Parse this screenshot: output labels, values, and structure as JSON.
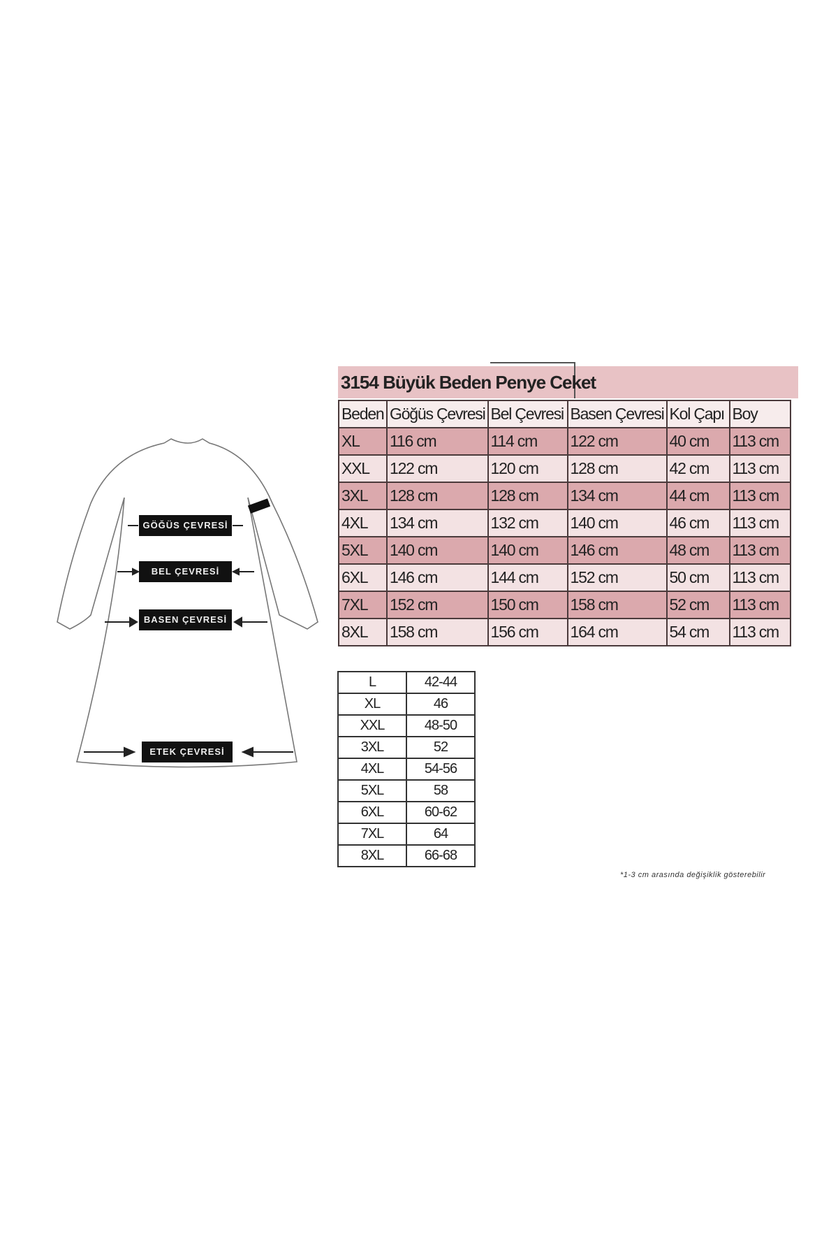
{
  "title": "3154 Büyük Beden Penye Ceket",
  "size_table": {
    "headers": [
      "Beden",
      "Göğüs Çevresi",
      "Bel Çevresi",
      "Basen Çevresi",
      "Kol Çapı",
      "Boy"
    ],
    "rows": [
      [
        "XL",
        "116 cm",
        "114 cm",
        "122 cm",
        "40 cm",
        "113 cm"
      ],
      [
        "XXL",
        "122 cm",
        "120 cm",
        "128 cm",
        "42 cm",
        "113 cm"
      ],
      [
        "3XL",
        "128 cm",
        "128 cm",
        "134 cm",
        "44 cm",
        "113 cm"
      ],
      [
        "4XL",
        "134 cm",
        "132 cm",
        "140 cm",
        "46 cm",
        "113 cm"
      ],
      [
        "5XL",
        "140 cm",
        "140 cm",
        "146 cm",
        "48 cm",
        "113 cm"
      ],
      [
        "6XL",
        "146 cm",
        "144 cm",
        "152 cm",
        "50 cm",
        "113 cm"
      ],
      [
        "7XL",
        "152 cm",
        "150 cm",
        "158 cm",
        "52 cm",
        "113 cm"
      ],
      [
        "8XL",
        "158 cm",
        "156 cm",
        "164 cm",
        "54 cm",
        "113 cm"
      ]
    ]
  },
  "eu_table": {
    "rows": [
      [
        "L",
        "42-44"
      ],
      [
        "XL",
        "46"
      ],
      [
        "XXL",
        "48-50"
      ],
      [
        "3XL",
        "52"
      ],
      [
        "4XL",
        "54-56"
      ],
      [
        "5XL",
        "58"
      ],
      [
        "6XL",
        "60-62"
      ],
      [
        "7XL",
        "64"
      ],
      [
        "8XL",
        "66-68"
      ]
    ]
  },
  "diagram": {
    "labels": {
      "chest": "GÖĞÜS ÇEVRESİ",
      "waist": "BEL ÇEVRESİ",
      "hip": "BASEN ÇEVRESİ",
      "hem": "ETEK ÇEVRESİ"
    }
  },
  "footnote": "*1-3 cm arasında değişiklik gösterebilir",
  "colors": {
    "row_dark": "#dba9ad",
    "row_light": "#f3e2e3",
    "title_bg": "#e8c2c5"
  }
}
